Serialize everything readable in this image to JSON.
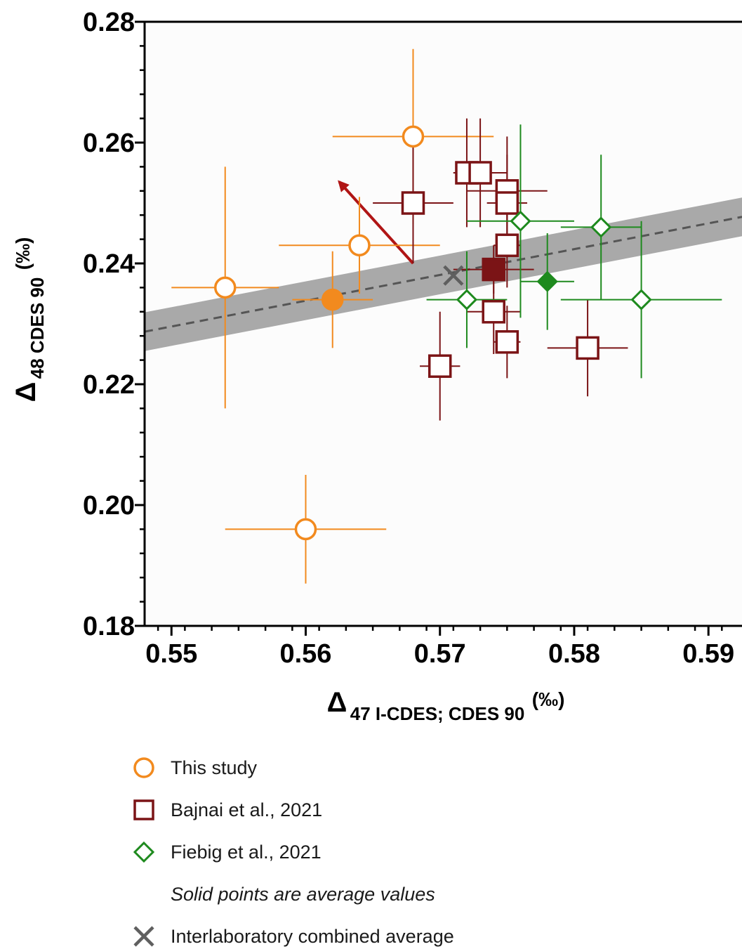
{
  "chart_data": {
    "type": "scatter",
    "xlabel": {
      "symbol": "Δ",
      "subscript": "47 I-CDES; CDES 90",
      "unit": "(‰)"
    },
    "ylabel": {
      "symbol": "Δ",
      "subscript": "48 CDES 90",
      "unit": "(‰)"
    },
    "xlim": [
      0.548,
      0.5925
    ],
    "ylim": [
      0.18,
      0.28
    ],
    "x_ticks": [
      {
        "value": 0.55,
        "label": "0.55"
      },
      {
        "value": 0.56,
        "label": "0.56"
      },
      {
        "value": 0.57,
        "label": "0.57"
      },
      {
        "value": 0.58,
        "label": "0.58"
      },
      {
        "value": 0.59,
        "label": "0.59"
      }
    ],
    "y_ticks": [
      {
        "value": 0.18,
        "label": "0.18"
      },
      {
        "value": 0.2,
        "label": "0.20"
      },
      {
        "value": 0.22,
        "label": "0.22"
      },
      {
        "value": 0.24,
        "label": "0.24"
      },
      {
        "value": 0.26,
        "label": "0.26"
      },
      {
        "value": 0.28,
        "label": "0.28"
      }
    ],
    "grid": false,
    "legend_position": "bottom",
    "regression": {
      "line": [
        [
          0.548,
          0.2287
        ],
        [
          0.5925,
          0.2477
        ]
      ],
      "band_halfwidth": 0.0032,
      "band_color": "#9a9a9a",
      "line_color": "#555555"
    },
    "arrow": {
      "from": [
        0.568,
        0.24
      ],
      "to": [
        0.5625,
        0.2535
      ],
      "color": "#b01515"
    },
    "series": [
      {
        "name": "This study",
        "marker": "circle",
        "color": "#f28a1e",
        "points": [
          {
            "x": 0.568,
            "y": 0.261,
            "xerr": 0.006,
            "yerr": 0.0145
          },
          {
            "x": 0.564,
            "y": 0.243,
            "xerr": 0.006,
            "yerr": 0.008
          },
          {
            "x": 0.554,
            "y": 0.236,
            "xerr": 0.004,
            "yerr": 0.02
          },
          {
            "x": 0.56,
            "y": 0.196,
            "xerr": 0.006,
            "yerr": 0.009
          }
        ],
        "average": {
          "x": 0.562,
          "y": 0.234,
          "xerr": 0.003,
          "yerr": 0.008
        }
      },
      {
        "name": "Bajnai et al., 2021",
        "marker": "square",
        "color": "#7b1416",
        "points": [
          {
            "x": 0.568,
            "y": 0.25,
            "xerr": 0.003,
            "yerr": 0.01
          },
          {
            "x": 0.572,
            "y": 0.255,
            "xerr": 0.001,
            "yerr": 0.009
          },
          {
            "x": 0.573,
            "y": 0.255,
            "xerr": 0.002,
            "yerr": 0.009
          },
          {
            "x": 0.575,
            "y": 0.252,
            "xerr": 0.003,
            "yerr": 0.009
          },
          {
            "x": 0.575,
            "y": 0.25,
            "xerr": 0.0015,
            "yerr": 0.008
          },
          {
            "x": 0.575,
            "y": 0.243,
            "xerr": 0.001,
            "yerr": 0.007
          },
          {
            "x": 0.574,
            "y": 0.232,
            "xerr": 0.002,
            "yerr": 0.007
          },
          {
            "x": 0.575,
            "y": 0.227,
            "xerr": 0.001,
            "yerr": 0.006
          },
          {
            "x": 0.57,
            "y": 0.223,
            "xerr": 0.0015,
            "yerr": 0.009
          },
          {
            "x": 0.581,
            "y": 0.226,
            "xerr": 0.003,
            "yerr": 0.008
          }
        ],
        "average": {
          "x": 0.574,
          "y": 0.239,
          "xerr": 0.003,
          "yerr": 0.004
        }
      },
      {
        "name": "Fiebig et al., 2021",
        "marker": "diamond",
        "color": "#1e8a1e",
        "points": [
          {
            "x": 0.576,
            "y": 0.247,
            "xerr": 0.004,
            "yerr": 0.016
          },
          {
            "x": 0.582,
            "y": 0.246,
            "xerr": 0.003,
            "yerr": 0.012
          },
          {
            "x": 0.572,
            "y": 0.234,
            "xerr": 0.003,
            "yerr": 0.008
          },
          {
            "x": 0.585,
            "y": 0.234,
            "xerr": 0.006,
            "yerr": 0.013
          }
        ],
        "average": {
          "x": 0.578,
          "y": 0.237,
          "xerr": 0.002,
          "yerr": 0.008
        }
      }
    ],
    "combined_average": {
      "name": "Interlaboratory combined average",
      "x": 0.571,
      "y": 0.238,
      "color": "#5f5f5f"
    },
    "legend": [
      {
        "label": "This study",
        "marker": "circle",
        "color": "#f28a1e"
      },
      {
        "label": "Bajnai et al., 2021",
        "marker": "square",
        "color": "#7b1416"
      },
      {
        "label": "Fiebig et al., 2021",
        "marker": "diamond",
        "color": "#1e8a1e"
      },
      {
        "label": "Solid points are average values",
        "marker": "none",
        "color": "#1a1a1a",
        "italic": true
      },
      {
        "label": "Interlaboratory combined average",
        "marker": "cross",
        "color": "#5f5f5f"
      }
    ]
  }
}
